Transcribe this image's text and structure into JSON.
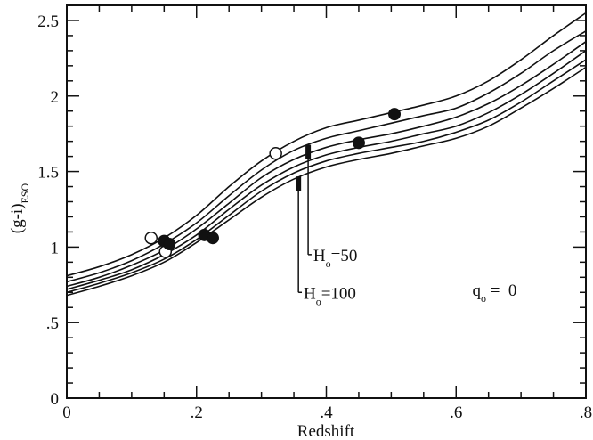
{
  "chart_data": {
    "type": "line",
    "xlabel": "Redshift",
    "ylabel": "(g-i)",
    "ylabel_sub": "ESO",
    "xlim": [
      0,
      0.8
    ],
    "ylim": [
      0,
      2.6
    ],
    "x_ticks": [
      {
        "value": 0,
        "label": "0"
      },
      {
        "value": 0.2,
        "label": ".2"
      },
      {
        "value": 0.4,
        "label": ".4"
      },
      {
        "value": 0.6,
        "label": ".6"
      },
      {
        "value": 0.8,
        "label": ".8"
      }
    ],
    "y_ticks": [
      {
        "value": 0,
        "label": "0"
      },
      {
        "value": 0.5,
        "label": ".5"
      },
      {
        "value": 1,
        "label": "1"
      },
      {
        "value": 1.5,
        "label": "1.5"
      },
      {
        "value": 2,
        "label": "2"
      },
      {
        "value": 2.5,
        "label": "2.5"
      }
    ],
    "grid": false,
    "curve_x": [
      0,
      0.05,
      0.1,
      0.15,
      0.2,
      0.25,
      0.3,
      0.35,
      0.4,
      0.45,
      0.5,
      0.55,
      0.6,
      0.65,
      0.7,
      0.75,
      0.8
    ],
    "series": [
      {
        "values": [
          0.81,
          0.87,
          0.95,
          1.06,
          1.21,
          1.4,
          1.57,
          1.7,
          1.79,
          1.84,
          1.89,
          1.94,
          2.0,
          2.1,
          2.24,
          2.4,
          2.55
        ]
      },
      {
        "values": [
          0.77,
          0.83,
          0.91,
          1.02,
          1.16,
          1.34,
          1.51,
          1.64,
          1.72,
          1.77,
          1.82,
          1.87,
          1.92,
          2.02,
          2.15,
          2.3,
          2.43
        ]
      },
      {
        "values": [
          0.74,
          0.8,
          0.88,
          0.98,
          1.12,
          1.29,
          1.46,
          1.58,
          1.66,
          1.71,
          1.75,
          1.8,
          1.86,
          1.95,
          2.07,
          2.21,
          2.36
        ]
      },
      {
        "values": [
          0.72,
          0.78,
          0.85,
          0.95,
          1.08,
          1.25,
          1.41,
          1.53,
          1.61,
          1.66,
          1.7,
          1.75,
          1.8,
          1.89,
          2.01,
          2.15,
          2.3
        ]
      },
      {
        "values": [
          0.7,
          0.76,
          0.83,
          0.92,
          1.05,
          1.21,
          1.37,
          1.49,
          1.57,
          1.62,
          1.66,
          1.7,
          1.76,
          1.84,
          1.96,
          2.1,
          2.24
        ]
      },
      {
        "values": [
          0.68,
          0.74,
          0.81,
          0.9,
          1.03,
          1.18,
          1.33,
          1.45,
          1.53,
          1.58,
          1.62,
          1.67,
          1.72,
          1.8,
          1.92,
          2.05,
          2.19
        ]
      }
    ],
    "filled_points": [
      {
        "x": 0.15,
        "y": 1.04
      },
      {
        "x": 0.158,
        "y": 1.02
      },
      {
        "x": 0.212,
        "y": 1.08
      },
      {
        "x": 0.225,
        "y": 1.06
      },
      {
        "x": 0.45,
        "y": 1.69
      },
      {
        "x": 0.505,
        "y": 1.88
      }
    ],
    "open_points": [
      {
        "x": 0.13,
        "y": 1.06
      },
      {
        "x": 0.152,
        "y": 0.97
      },
      {
        "x": 0.322,
        "y": 1.62
      }
    ],
    "markers": [
      {
        "x": 0.372,
        "y": 1.63,
        "label": "H",
        "label_sub": "o",
        "label_value": "=50",
        "label_x": 0.38,
        "label_y": 0.95
      },
      {
        "x": 0.357,
        "y": 1.42,
        "label": "H",
        "label_sub": "o",
        "label_value": "=100",
        "label_x": 0.365,
        "label_y": 0.7
      }
    ],
    "annotation": {
      "text": "q",
      "sub": "o",
      "value": " =  0",
      "x": 0.625,
      "y": 0.72
    }
  }
}
